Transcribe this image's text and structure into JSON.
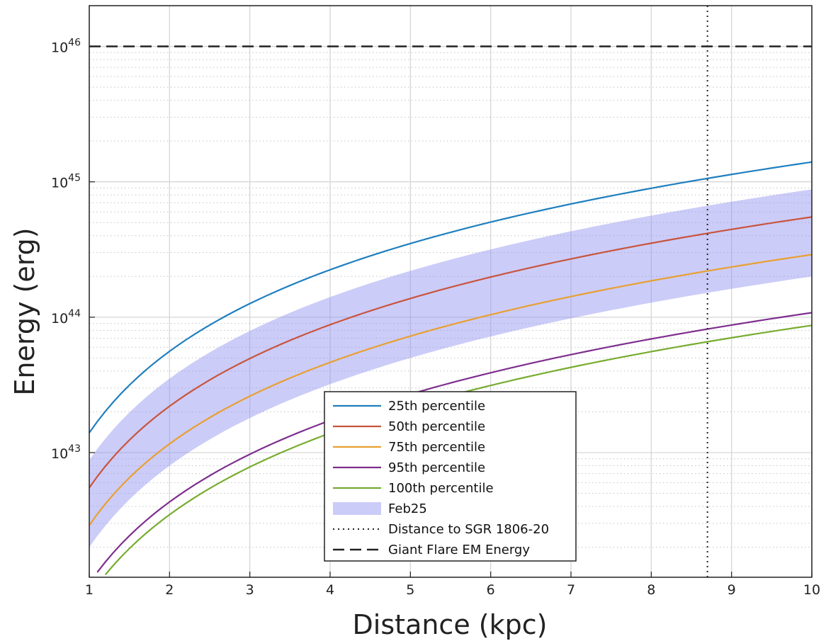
{
  "chart_data": {
    "type": "line",
    "xlabel": "Distance (kpc)",
    "ylabel": "Energy (erg)",
    "xlim": [
      1,
      10
    ],
    "ylim": [
      1.2e+42,
      2e+46
    ],
    "yscale": "log",
    "grid": true,
    "legend_position": "bottom-center",
    "xticks": [
      1,
      2,
      3,
      4,
      5,
      6,
      7,
      8,
      9,
      10
    ],
    "yticks": [
      {
        "value": 1e+43,
        "base": "10",
        "exp": "43"
      },
      {
        "value": 1e+44,
        "base": "10",
        "exp": "44"
      },
      {
        "value": 1e+45,
        "base": "10",
        "exp": "45"
      },
      {
        "value": 1e+46,
        "base": "10",
        "exp": "46"
      }
    ],
    "series": [
      {
        "name": "25th percentile",
        "color": "#1f7fbf",
        "k": 1.4e+43
      },
      {
        "name": "50th percentile",
        "color": "#c8553d",
        "k": 5.5e+42
      },
      {
        "name": "75th percentile",
        "color": "#e8a030",
        "k": 2.9e+42
      },
      {
        "name": "95th percentile",
        "color": "#7e2f8e",
        "k": 1.08e+42
      },
      {
        "name": "100th percentile",
        "color": "#77ac30",
        "k": 8.7e+41
      }
    ],
    "band": {
      "name": "Feb25",
      "color": "#8f8ff0",
      "opacity": 0.45,
      "k_lower": 2e+42,
      "k_upper": 8.8e+42
    },
    "series_law": "E = k * d^2",
    "vline": {
      "name": "Distance to SGR 1806-20",
      "x": 8.7
    },
    "hline": {
      "name": "Giant Flare EM Energy",
      "y": 1e+46
    }
  }
}
